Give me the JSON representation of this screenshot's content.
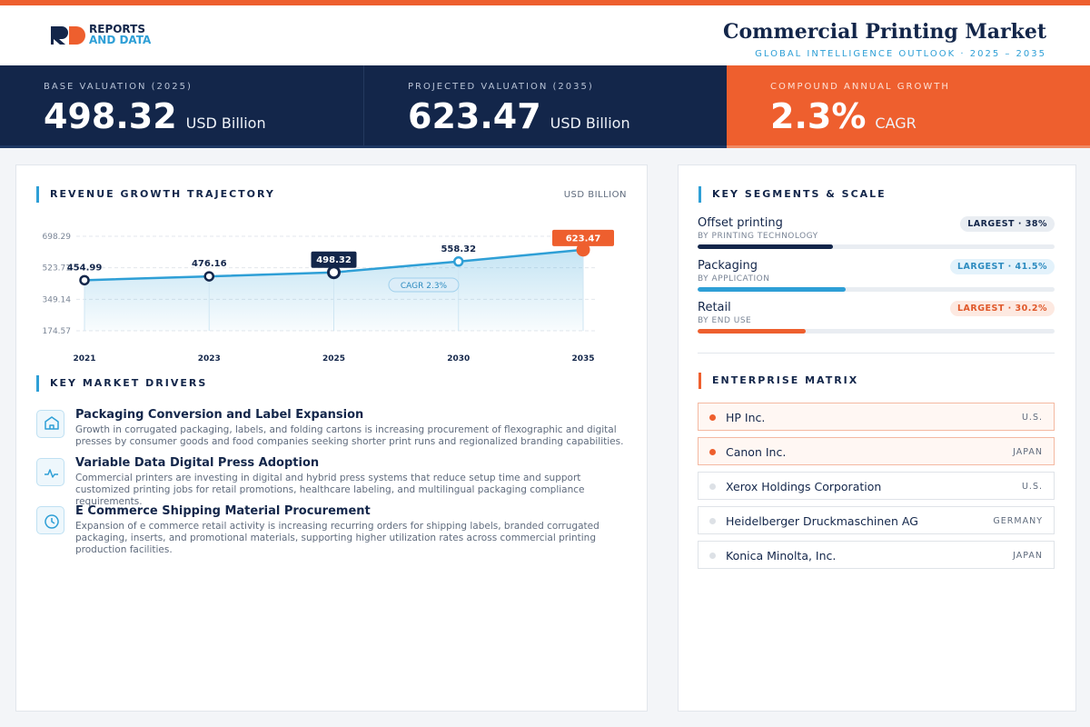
{
  "header": {
    "logo_line1": "REPORTS",
    "logo_line2": "AND DATA",
    "title": "Commercial Printing Market",
    "subtitle": "GLOBAL INTELLIGENCE OUTLOOK · 2025 – 2035"
  },
  "kpis": [
    {
      "label": "BASE VALUATION (2025)",
      "value": "498.32",
      "unit": "USD Billion"
    },
    {
      "label": "PROJECTED VALUATION (2035)",
      "value": "623.47",
      "unit": "USD Billion"
    },
    {
      "label": "COMPOUND ANNUAL GROWTH",
      "value": "2.3%",
      "unit": "CAGR"
    }
  ],
  "chart_data": {
    "type": "line",
    "title": "REVENUE GROWTH TRAJECTORY",
    "unit_label": "USD BILLION",
    "categories": [
      "2021",
      "2023",
      "2025",
      "2030",
      "2035"
    ],
    "values": [
      454.99,
      476.16,
      498.32,
      558.32,
      623.47
    ],
    "color": "#2e9fd6",
    "marker_colors": [
      "#13264a",
      "#13264a",
      "#13264a",
      "#2e9fd6",
      "#ee5f2e"
    ],
    "ylim": [
      174.57,
      698.29
    ],
    "yticks": [
      174.57,
      349.14,
      523.71,
      698.29
    ],
    "grid": true,
    "annotation": "CAGR 2.3%"
  },
  "drivers": {
    "title": "KEY MARKET DRIVERS",
    "items": [
      {
        "title": "Packaging Conversion and Label Expansion",
        "text": "Growth in corrugated packaging, labels, and folding cartons is increasing procurement of flexographic and digital presses by consumer goods and food companies seeking shorter print runs and regionalized branding capabilities."
      },
      {
        "title": "Variable Data Digital Press Adoption",
        "text": "Commercial printers are investing in digital and hybrid press systems that reduce setup time and support customized printing jobs for retail promotions, healthcare labeling, and multilingual packaging compliance requirements."
      },
      {
        "title": "E Commerce Shipping Material Procurement",
        "text": "Expansion of e commerce retail activity is increasing recurring orders for shipping labels, branded corrugated packaging, inserts, and promotional materials, supporting higher utilization rates across commercial printing production facilities."
      }
    ]
  },
  "segments": {
    "title": "KEY SEGMENTS & SCALE",
    "items": [
      {
        "name": "Offset printing",
        "group": "BY PRINTING TECHNOLOGY",
        "share": 38,
        "badge": "LARGEST · 38%",
        "color": "#13264a"
      },
      {
        "name": "Packaging",
        "group": "BY APPLICATION",
        "share": 41.5,
        "badge": "LARGEST · 41.5%",
        "color": "#2e9fd6"
      },
      {
        "name": "Retail",
        "group": "BY END USE",
        "share": 30.2,
        "badge": "LARGEST · 30.2%",
        "color": "#ee5f2e"
      }
    ]
  },
  "enterprises": {
    "title": "ENTERPRISE MATRIX",
    "rows": [
      {
        "name": "HP Inc.",
        "country": "U.S.",
        "highlight": true
      },
      {
        "name": "Canon Inc.",
        "country": "JAPAN",
        "highlight": true
      },
      {
        "name": "Xerox Holdings Corporation",
        "country": "U.S.",
        "highlight": false
      },
      {
        "name": "Heidelberger Druckmaschinen AG",
        "country": "GERMANY",
        "highlight": false
      },
      {
        "name": "Konica Minolta, Inc.",
        "country": "JAPAN",
        "highlight": false
      }
    ]
  }
}
